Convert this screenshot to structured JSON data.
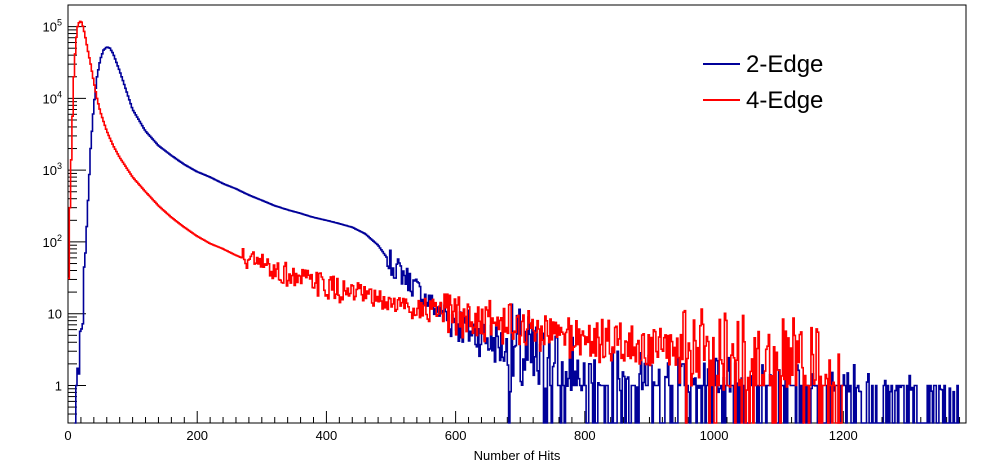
{
  "chart_data": {
    "type": "line",
    "title": "",
    "xlabel": "Number of Hits",
    "ylabel": "",
    "xlim": [
      0,
      1390
    ],
    "ylim": [
      0.3,
      200000
    ],
    "y_scale": "log",
    "grid": false,
    "legend_position": "top-right",
    "x_ticks": [
      0,
      200,
      400,
      600,
      800,
      1000,
      1200
    ],
    "x_tick_labels": [
      "0",
      "200",
      "400",
      "600",
      "800",
      "1000",
      "1200"
    ],
    "y_ticks": [
      1,
      10,
      100,
      1000,
      10000,
      100000
    ],
    "y_tick_labels": [
      {
        "base": "1",
        "exp": ""
      },
      {
        "base": "10",
        "exp": ""
      },
      {
        "base": "10",
        "exp": "2"
      },
      {
        "base": "10",
        "exp": "3"
      },
      {
        "base": "10",
        "exp": "4"
      },
      {
        "base": "10",
        "exp": "5"
      }
    ],
    "series": [
      {
        "name": "2-Edge",
        "color": "#000099",
        "x": [
          10,
          15,
          20,
          25,
          30,
          35,
          40,
          45,
          50,
          55,
          60,
          65,
          70,
          80,
          90,
          100,
          120,
          140,
          160,
          180,
          200,
          220,
          240,
          260,
          280,
          300,
          320,
          340,
          360,
          380,
          400,
          420,
          440,
          460,
          480,
          500,
          520,
          540,
          560,
          580,
          600,
          620,
          640,
          660,
          680,
          700,
          720,
          740,
          760,
          780,
          800,
          820,
          840,
          860,
          880,
          900,
          940,
          980,
          1020,
          1060,
          1100,
          1140,
          1180,
          1220,
          1260,
          1300,
          1340,
          1380
        ],
        "y": [
          0.3,
          1,
          2,
          30,
          250,
          2000,
          8000,
          20000,
          35000,
          47000,
          52000,
          50000,
          42000,
          24000,
          13000,
          7000,
          3500,
          2200,
          1600,
          1200,
          950,
          800,
          650,
          550,
          450,
          380,
          320,
          280,
          250,
          220,
          200,
          180,
          160,
          130,
          90,
          50,
          35,
          22,
          14,
          10,
          8,
          6,
          5,
          4,
          3,
          2.5,
          2,
          1.5,
          1.2,
          1,
          0.9,
          0.8,
          0.7,
          0.6,
          0.6,
          0.6,
          0.5,
          0.5,
          0.5,
          0.45,
          0.45,
          0.4,
          0.4,
          0.4,
          0.35,
          0.35,
          0.35,
          0.35
        ]
      },
      {
        "name": "4-Edge",
        "color": "#ff0000",
        "x": [
          0,
          3,
          6,
          9,
          12,
          15,
          18,
          21,
          24,
          27,
          30,
          35,
          40,
          45,
          50,
          60,
          70,
          80,
          90,
          100,
          120,
          140,
          160,
          180,
          200,
          220,
          240,
          260,
          280,
          300,
          320,
          340,
          360,
          380,
          400,
          420,
          440,
          460,
          480,
          500,
          520,
          540,
          560,
          580,
          600,
          620,
          640,
          660,
          680,
          700,
          720,
          740,
          760,
          780,
          800,
          820,
          840,
          860,
          880,
          900,
          940,
          980,
          1020,
          1060,
          1100,
          1140,
          1180,
          1200
        ],
        "y": [
          10,
          300,
          3000,
          20000,
          60000,
          100000,
          120000,
          115000,
          95000,
          70000,
          50000,
          30000,
          17000,
          10000,
          6500,
          3500,
          2200,
          1500,
          1100,
          800,
          500,
          320,
          220,
          160,
          120,
          95,
          80,
          65,
          55,
          48,
          40,
          35,
          30,
          27,
          24,
          21,
          19,
          17,
          15,
          14,
          13,
          12,
          11,
          10,
          9,
          8.5,
          8,
          7.5,
          7,
          6.5,
          6,
          5.5,
          5,
          4.8,
          4.5,
          4.2,
          4,
          3.8,
          3.5,
          3.3,
          3,
          2.8,
          2.5,
          2.2,
          2,
          1.6,
          1,
          0.5
        ]
      }
    ]
  }
}
